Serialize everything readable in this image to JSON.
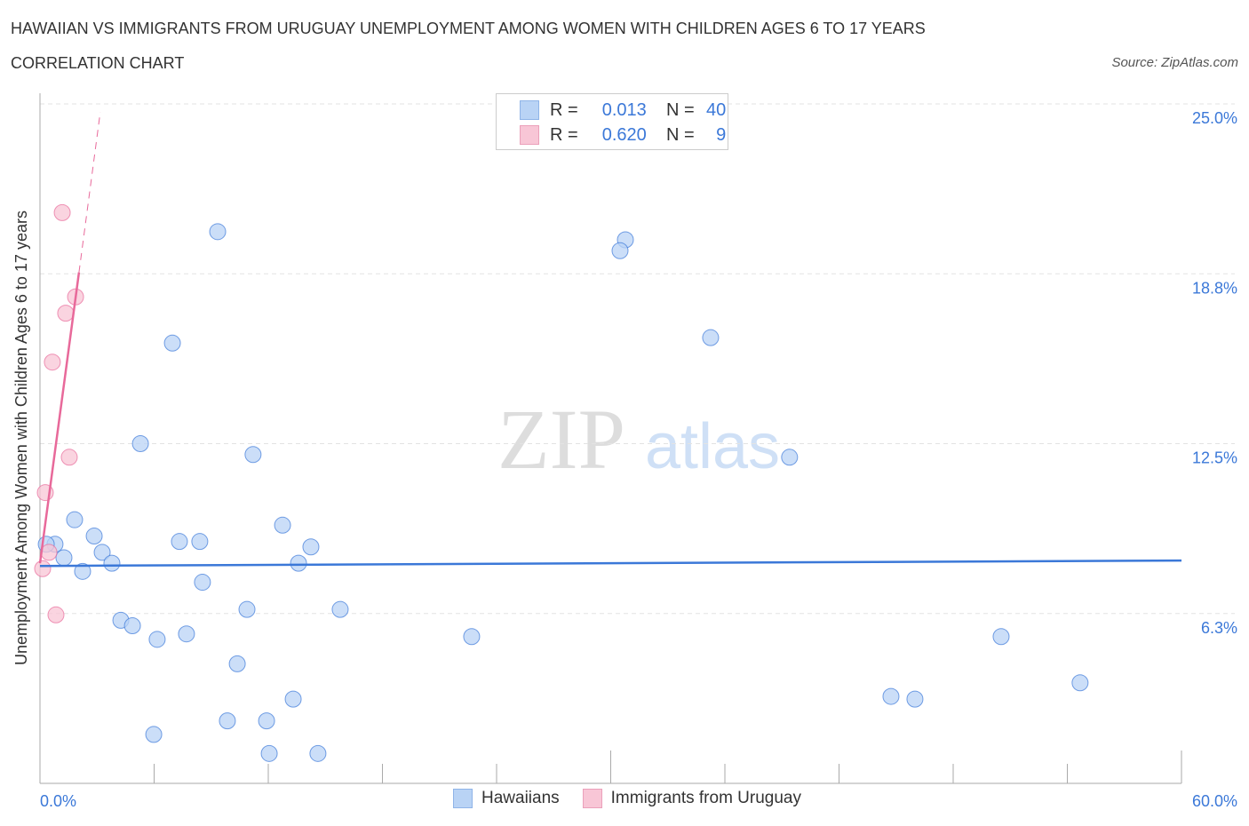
{
  "header": {
    "title": "HAWAIIAN VS IMMIGRANTS FROM URUGUAY UNEMPLOYMENT AMONG WOMEN WITH CHILDREN AGES 6 TO 17 YEARS",
    "subtitle": "CORRELATION CHART",
    "source": "Source: ZipAtlas.com"
  },
  "legend": {
    "rows": [
      {
        "r_label": "R =",
        "r": "0.013",
        "n_label": "N =",
        "n": "40"
      },
      {
        "r_label": "R =",
        "r": "0.620",
        "n_label": "N =",
        "n": "9"
      }
    ]
  },
  "watermark": {
    "zip": "ZIP",
    "atlas": "atlas"
  },
  "chart_data": {
    "type": "scatter",
    "title": "HAWAIIAN VS IMMIGRANTS FROM URUGUAY UNEMPLOYMENT AMONG WOMEN WITH CHILDREN AGES 6 TO 17 YEARS",
    "xlabel": "",
    "ylabel": "Unemployment Among Women with Children Ages 6 to 17 years",
    "xlim": [
      0,
      60
    ],
    "ylim": [
      0,
      25
    ],
    "x_tick_labels": [
      "0.0%",
      "60.0%"
    ],
    "y_tick_values": [
      25,
      18.75,
      12.5,
      6.25
    ],
    "y_tick_labels": [
      "25.0%",
      "18.8%",
      "12.5%",
      "6.3%"
    ],
    "grid": true,
    "legend_position": "bottom-center",
    "series": [
      {
        "name": "Hawaiians",
        "color": "#3b78d8",
        "fill": "#b9d3f5",
        "points": [
          [
            9.34,
            20.3
          ],
          [
            30.77,
            20.0
          ],
          [
            30.49,
            19.6
          ],
          [
            35.25,
            16.4
          ],
          [
            6.96,
            16.2
          ],
          [
            5.28,
            12.5
          ],
          [
            11.2,
            12.1
          ],
          [
            39.4,
            12.0
          ],
          [
            1.82,
            9.7
          ],
          [
            12.75,
            9.5
          ],
          [
            2.85,
            9.1
          ],
          [
            7.33,
            8.9
          ],
          [
            8.4,
            8.9
          ],
          [
            14.24,
            8.7
          ],
          [
            0.79,
            8.8
          ],
          [
            0.33,
            8.8
          ],
          [
            3.27,
            8.5
          ],
          [
            1.26,
            8.3
          ],
          [
            3.78,
            8.1
          ],
          [
            13.59,
            8.1
          ],
          [
            2.24,
            7.8
          ],
          [
            8.54,
            7.4
          ],
          [
            10.88,
            6.4
          ],
          [
            15.78,
            6.4
          ],
          [
            4.25,
            6.0
          ],
          [
            4.86,
            5.8
          ],
          [
            6.16,
            5.3
          ],
          [
            7.7,
            5.5
          ],
          [
            22.69,
            5.4
          ],
          [
            50.52,
            5.4
          ],
          [
            10.37,
            4.4
          ],
          [
            54.67,
            3.7
          ],
          [
            44.73,
            3.2
          ],
          [
            45.99,
            3.1
          ],
          [
            13.31,
            3.1
          ],
          [
            5.98,
            1.8
          ],
          [
            9.85,
            2.3
          ],
          [
            11.91,
            2.3
          ],
          [
            12.05,
            1.1
          ],
          [
            14.61,
            1.1
          ]
        ],
        "trend": [
          [
            0,
            8.0
          ],
          [
            60,
            8.2
          ]
        ]
      },
      {
        "name": "Immigrants from Uruguay",
        "color": "#e8699a",
        "fill": "#f8c6d6",
        "points": [
          [
            1.17,
            21.0
          ],
          [
            1.87,
            17.9
          ],
          [
            1.35,
            17.3
          ],
          [
            0.65,
            15.5
          ],
          [
            1.54,
            12.0
          ],
          [
            0.28,
            10.7
          ],
          [
            0.47,
            8.5
          ],
          [
            0.14,
            7.9
          ],
          [
            0.84,
            6.2
          ]
        ],
        "trend": [
          [
            0,
            8.1
          ],
          [
            2.05,
            18.8
          ]
        ],
        "trend_dashed": [
          [
            2.05,
            18.8
          ],
          [
            3.17,
            24.7
          ]
        ]
      }
    ]
  }
}
